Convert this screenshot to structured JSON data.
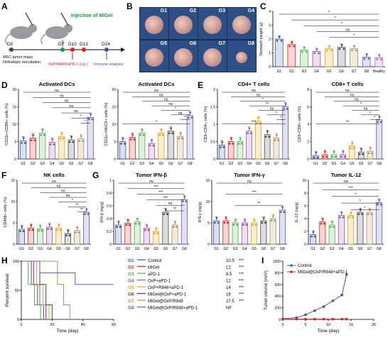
{
  "panels": {
    "A": "A",
    "B": "B",
    "C": "C",
    "D": "D",
    "E": "E",
    "F": "F",
    "G": "G",
    "H": "H",
    "I": "I"
  },
  "group_labels": [
    "G1",
    "G2",
    "G3",
    "G4",
    "G5",
    "G6",
    "G7",
    "G8"
  ],
  "colors": [
    "#3a53a4",
    "#e31a1c",
    "#4daf4a",
    "#984ea3",
    "#f39c12",
    "#444444",
    "#b08a5a",
    "#5b5bb5"
  ],
  "panelA": {
    "injection": "Injection of MIGel",
    "d0": "D0",
    "d7": "D7",
    "d10": "D10",
    "d13": "D13",
    "d24": "D24",
    "mfc": "MFC tumor mass",
    "ortho": "Orthotopic inoculation",
    "ip": "OxP/R848/aPD-1 (i.p.)",
    "immune": "Immune analysis"
  },
  "panelB": {
    "labels": [
      "G1",
      "G2",
      "G3",
      "G4",
      "G5",
      "G6",
      "G7",
      "G8"
    ]
  },
  "chart_data": [
    {
      "id": "stomach-weight",
      "type": "bar",
      "title": "",
      "xlabel": "",
      "ylabel": "Stomach weight (g)",
      "ylim": [
        0,
        4
      ],
      "yticks": [
        0,
        1,
        2,
        3,
        4
      ],
      "categories": [
        "G1",
        "G2",
        "G3",
        "G4",
        "G5",
        "G6",
        "G7",
        "G8",
        "Healthy"
      ],
      "values": [
        2.0,
        1.6,
        1.2,
        1.1,
        1.3,
        1.4,
        1.3,
        0.7,
        0.65
      ],
      "significance": [
        "*",
        "*",
        "*",
        "ns",
        "*"
      ]
    },
    {
      "id": "activated-dcs-cd86",
      "type": "bar",
      "title": "Activated DCs",
      "ylabel": "CD11c+CD86+ cells (%)",
      "ylim": [
        0,
        20
      ],
      "yticks": [
        0,
        5,
        10,
        15,
        20
      ],
      "categories": [
        "G1",
        "G2",
        "G3",
        "G4",
        "G5",
        "G6",
        "G7",
        "G8"
      ],
      "values": [
        5.2,
        6.0,
        7.5,
        4.8,
        6.5,
        5.5,
        5.8,
        12.0
      ],
      "significance": [
        "ns",
        "ns",
        "ns",
        "ns",
        "ns",
        "*",
        "*"
      ]
    },
    {
      "id": "activated-dcs-mhc",
      "type": "bar",
      "title": "Activated DCs",
      "ylabel": "CD11c+MHCII+ cells (%)",
      "ylim": [
        0,
        20
      ],
      "yticks": [
        0,
        5,
        10,
        15,
        20
      ],
      "categories": [
        "G1",
        "G2",
        "G3",
        "G4",
        "G5",
        "G6",
        "G7",
        "G8"
      ],
      "values": [
        5.0,
        6.2,
        7.5,
        4.5,
        7.5,
        8.0,
        6.5,
        12.5
      ],
      "significance": [
        "ns",
        "ns",
        "ns",
        "ns",
        "*",
        "ns",
        "*",
        "*"
      ]
    },
    {
      "id": "cd4-t-cells",
      "type": "bar",
      "title": "CD4+ T cells",
      "ylabel": "CD3+CD4+ cells (%)",
      "ylim": [
        0,
        2
      ],
      "yticks": [
        0.0,
        0.5,
        1.0,
        1.5,
        2.0
      ],
      "categories": [
        "G1",
        "G2",
        "G3",
        "G4",
        "G5",
        "G6",
        "G7",
        "G8"
      ],
      "values": [
        0.4,
        0.5,
        0.5,
        0.8,
        1.1,
        0.7,
        0.6,
        1.5
      ],
      "significance": [
        "ns",
        "ns",
        "*",
        "**",
        "ns",
        "*",
        "*",
        "***"
      ]
    },
    {
      "id": "cd8-t-cells",
      "type": "bar",
      "title": "CD8+ T cells",
      "ylabel": "CD3+CD8+ cells (%)",
      "ylim": [
        0,
        8
      ],
      "yticks": [
        0,
        2,
        4,
        6,
        8
      ],
      "categories": [
        "G1",
        "G2",
        "G3",
        "G4",
        "G5",
        "G6",
        "G7",
        "G8"
      ],
      "values": [
        0.4,
        0.5,
        0.5,
        0.5,
        1.5,
        0.8,
        0.9,
        4.5
      ],
      "significance": [
        "ns",
        "ns",
        "ns",
        "*",
        "ns",
        "*",
        "*",
        "**"
      ]
    },
    {
      "id": "nk-cells",
      "type": "bar",
      "title": "NK cells",
      "ylabel": "CD49b+ cells (%)",
      "ylim": [
        0,
        15
      ],
      "yticks": [
        0,
        5,
        10,
        15
      ],
      "categories": [
        "G1",
        "G2",
        "G3",
        "G4",
        "G5",
        "G6",
        "G7",
        "G8"
      ],
      "values": [
        3.5,
        3.8,
        3.6,
        4.0,
        3.8,
        2.5,
        3.2,
        7.5
      ],
      "significance": [
        "ns",
        "ns",
        "ns",
        "ns",
        "*",
        "**",
        "**"
      ]
    },
    {
      "id": "tumor-ifn-beta",
      "type": "bar",
      "title": "Tumor IFN-β",
      "ylabel": "IFN-β (ng/g)",
      "ylim": [
        0,
        1.0
      ],
      "yticks": [
        0.0,
        0.2,
        0.4,
        0.6,
        0.8,
        1.0
      ],
      "categories": [
        "G1",
        "G2",
        "G3",
        "G4",
        "G5",
        "G6",
        "G7",
        "G8"
      ],
      "values": [
        0.3,
        0.33,
        0.35,
        0.25,
        0.2,
        0.5,
        0.3,
        0.7
      ],
      "significance": [
        "ns",
        "***",
        "***",
        "***",
        "ns",
        "**"
      ]
    },
    {
      "id": "tumor-ifn-gamma",
      "type": "bar",
      "title": "Tumor IFN-γ",
      "ylabel": "IFN-γ (ng/g)",
      "ylim": [
        0,
        15
      ],
      "yticks": [
        0,
        5,
        10,
        15
      ],
      "categories": [
        "G1",
        "G2",
        "G3",
        "G4",
        "G5",
        "G6",
        "G7",
        "G8"
      ],
      "values": [
        5.5,
        5.5,
        5.0,
        5.0,
        5.0,
        5.5,
        6.0,
        8.0
      ],
      "significance": [
        "ns",
        "***",
        "**"
      ]
    },
    {
      "id": "tumor-il-12",
      "type": "bar",
      "title": "Tumor IL-12",
      "ylabel": "IL-12 (ng/g)",
      "ylim": [
        0,
        10
      ],
      "yticks": [
        0,
        2,
        4,
        6,
        8,
        10
      ],
      "categories": [
        "G1",
        "G2",
        "G3",
        "G4",
        "G5",
        "G6",
        "G7",
        "G8"
      ],
      "values": [
        1.5,
        3.5,
        3.0,
        4.5,
        4.5,
        5.0,
        5.0,
        6.5
      ],
      "significance": [
        "ns",
        "***",
        "*",
        "*",
        "*"
      ]
    },
    {
      "id": "survival",
      "type": "line",
      "title": "",
      "xlabel": "Time (day)",
      "ylabel": "Percent survival",
      "xlim": [
        0,
        60
      ],
      "ylim": [
        0,
        100
      ],
      "xticks": [
        0,
        20,
        40,
        60
      ],
      "yticks": [
        0,
        50,
        100
      ],
      "series": [
        {
          "name": "Control",
          "median": "10.5",
          "sig": "***"
        },
        {
          "name": "MIGel",
          "median": "12",
          "sig": "***"
        },
        {
          "name": "aPD-1",
          "median": "8.5",
          "sig": "***"
        },
        {
          "name": "OxP+aPD-1",
          "median": "12",
          "sig": "***"
        },
        {
          "name": "OxP+R848+aPD-1",
          "median": "14",
          "sig": "***"
        },
        {
          "name": "MIGel@OxP+aPD-1",
          "median": "16",
          "sig": "***"
        },
        {
          "name": "MIGel@OxP/R848",
          "median": "27.5",
          "sig": "***"
        },
        {
          "name": "MIGel@OxP/R848+aPD-1",
          "median": "NF",
          "sig": ""
        }
      ]
    },
    {
      "id": "tumor-volume",
      "type": "line",
      "title": "",
      "xlabel": "Time (day)",
      "ylabel": "Tumor volume (mm³)",
      "xlim": [
        0,
        20
      ],
      "ylim": [
        0,
        1000
      ],
      "xticks": [
        0,
        5,
        10,
        15,
        20
      ],
      "yticks": [
        0,
        200,
        400,
        600,
        800,
        1000
      ],
      "series": [
        {
          "name": "Control",
          "x": [
            0,
            3,
            5,
            7,
            9,
            11,
            13,
            14
          ],
          "y": [
            10,
            30,
            80,
            150,
            220,
            320,
            420,
            770
          ]
        },
        {
          "name": "MIGel@OxP/R848+aPD-1",
          "x": [
            0,
            3,
            5,
            7,
            9,
            11,
            13,
            14
          ],
          "y": [
            5,
            5,
            5,
            5,
            5,
            5,
            5,
            5
          ]
        }
      ]
    }
  ]
}
